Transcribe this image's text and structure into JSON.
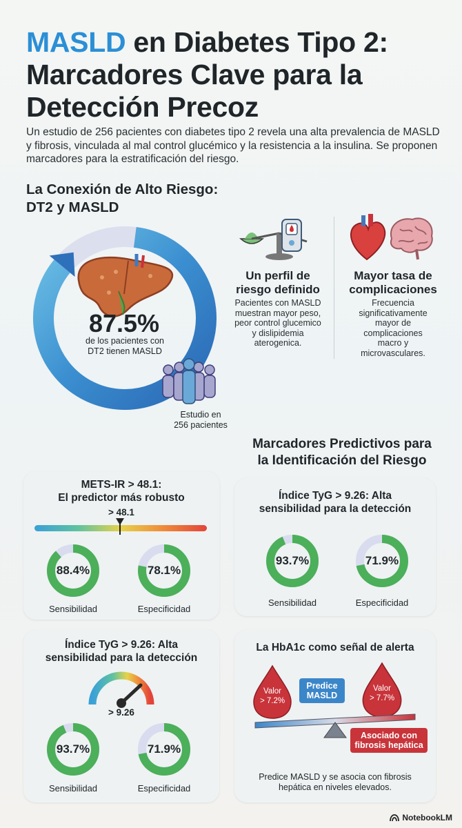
{
  "header": {
    "title_accent": "MASLD",
    "title_rest_1": " en Diabetes Tipo 2:",
    "title_line_2": "Marcadores Clave para la",
    "title_line_3": "Detección Precoz",
    "intro": "Un estudio de 256 pacientes con diabetes tipo 2 revela una alta prevalencia de MASLD y fibrosis, vinculada al mal control glucémico y la resistencia a la insulina. Se proponen marcadores para la estratificación del riesgo."
  },
  "connection": {
    "heading_1": "La Conexión de Alto Riesgo:",
    "heading_2": "DT2 y MASLD",
    "prevalence_value": "87.5%",
    "prevalence_fraction": 0.875,
    "prevalence_sub_1": "de los pacientes con",
    "prevalence_sub_2": "DT2 tienen MASLD",
    "study_1": "Estudio en",
    "study_2": "256 pacientes",
    "profile_title_1": "Un perfil de",
    "profile_title_2": "riesgo definido",
    "profile_text_1": "Pacientes con MASLD",
    "profile_text_2": "muestran mayor peso,",
    "profile_text_3": "peor control glucemico",
    "profile_text_4": "y dislipidemia",
    "profile_text_5": "aterogenica.",
    "comp_title_1": "Mayor tasa de",
    "comp_title_2": "complicaciones",
    "comp_text_1": "Frecuencia",
    "comp_text_2": "significativamente",
    "comp_text_3": "mayor de",
    "comp_text_4": "complicaciones",
    "comp_text_5": "macro y",
    "comp_text_6": "microvasculares."
  },
  "markers": {
    "heading_1": "Marcadores Predictivos para",
    "heading_2": "la Identificación del Riesgo",
    "metsir": {
      "title_1": "METS-IR > 48.1:",
      "title_2": "El predictor más robusto",
      "threshold": "> 48.1",
      "sens_value": "88.4%",
      "sens_fraction": 0.884,
      "sens_label": "Sensibilidad",
      "spec_value": "78.1%",
      "spec_fraction": 0.781,
      "spec_label": "Especificidad"
    },
    "tyg_top": {
      "title_1": "Índice TyG > 9.26: Alta",
      "title_2": "sensibilidad para la detección",
      "sens_value": "93.7%",
      "sens_fraction": 0.937,
      "sens_label": "Sensibilidad",
      "spec_value": "71.9%",
      "spec_fraction": 0.719,
      "spec_label": "Especificidad"
    },
    "tyg_bottom": {
      "title_1": "Índice TyG > 9.26: Alta",
      "title_2": "sensibilidad para la detección",
      "threshold": "> 9.26",
      "sens_value": "93.7%",
      "sens_fraction": 0.937,
      "sens_label": "Sensibilidad",
      "spec_value": "71.9%",
      "spec_fraction": 0.719,
      "spec_label": "Especificidad"
    },
    "hba1c": {
      "title": "La HbA1c como señal de alerta",
      "drop_left_1": "Valor",
      "drop_left_2": "> 7.2%",
      "drop_right_1": "Valor",
      "drop_right_2": "> 7.7%",
      "predict_1": "Predice",
      "predict_2": "MASLD",
      "assoc_1": "Asociado con",
      "assoc_2": "fibrosis hepática",
      "note_1": "Predice MASLD y se asocia con fibrosis",
      "note_2": "hepática en niveles elevados."
    }
  },
  "footer": {
    "brand": "NotebookLM"
  },
  "colors": {
    "accent_blue": "#2b8fd6",
    "ring_blue": "#3b8fd0",
    "ring_track": "#d9dcef",
    "donut_green": "#4caf5a",
    "donut_track": "#d9dcef",
    "alert_red": "#c8343a"
  }
}
